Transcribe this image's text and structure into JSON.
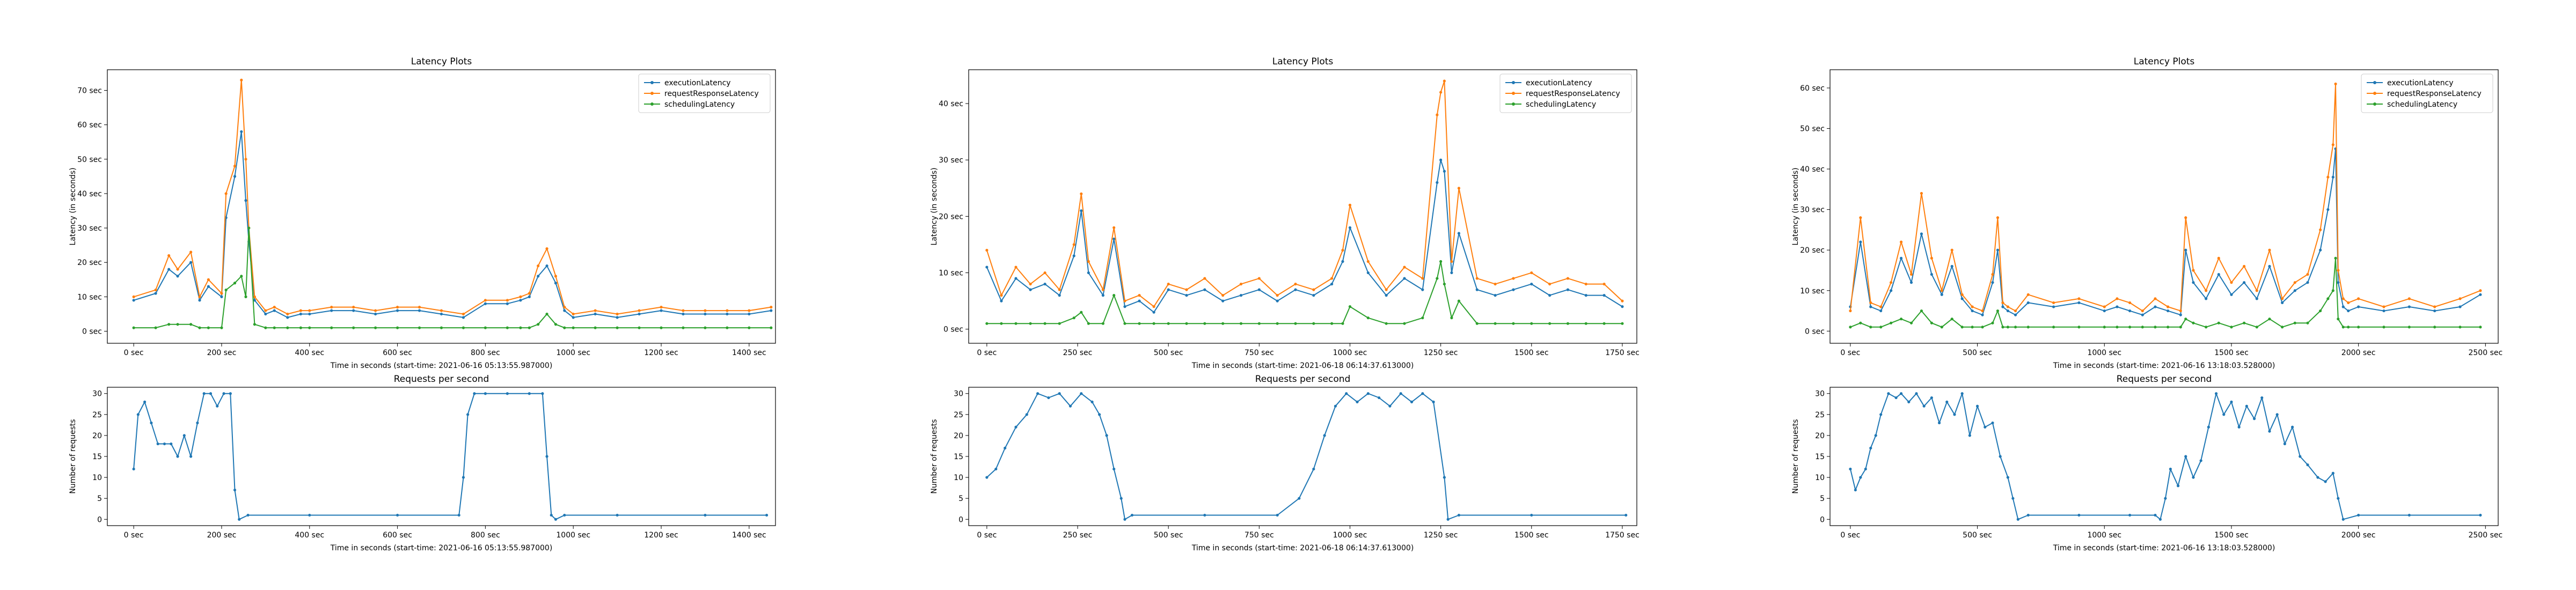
{
  "colors": {
    "execution": "#1f77b4",
    "request": "#ff7f0e",
    "scheduling": "#2ca02c",
    "rps": "#1f77b4"
  },
  "chart_data": [
    {
      "type": "line",
      "title": "Latency Plots",
      "xlabel": "Time in seconds (start-time: 2021-06-16 05:13:55.987000)",
      "ylabel": "Latency (in seconds)",
      "xlim": [
        -60,
        1460
      ],
      "ylim": [
        -3.5,
        76
      ],
      "xticks": [
        0,
        200,
        400,
        600,
        800,
        1000,
        1200,
        1400
      ],
      "xticklabels": [
        "0 sec",
        "200 sec",
        "400 sec",
        "600 sec",
        "800 sec",
        "1000 sec",
        "1200 sec",
        "1400 sec"
      ],
      "yticks": [
        0,
        10,
        20,
        30,
        40,
        50,
        60,
        70
      ],
      "yticklabels": [
        "0 sec",
        "10 sec",
        "20 sec",
        "30 sec",
        "40 sec",
        "50 sec",
        "60 sec",
        "70 sec"
      ],
      "legend_position": "top-right",
      "x": [
        0,
        50,
        80,
        100,
        130,
        150,
        170,
        200,
        210,
        230,
        245,
        255,
        262,
        275,
        300,
        320,
        350,
        380,
        400,
        450,
        500,
        550,
        600,
        650,
        700,
        750,
        800,
        850,
        880,
        900,
        920,
        940,
        960,
        980,
        1000,
        1050,
        1100,
        1150,
        1200,
        1250,
        1300,
        1350,
        1400,
        1450
      ],
      "series": [
        {
          "name": "executionLatency",
          "values": [
            9,
            11,
            18,
            16,
            20,
            9,
            13,
            10,
            33,
            45,
            58,
            38,
            26,
            9,
            5,
            6,
            4,
            5,
            5,
            6,
            6,
            5,
            6,
            6,
            5,
            4,
            8,
            8,
            9,
            10,
            16,
            19,
            14,
            6,
            4,
            5,
            4,
            5,
            6,
            5,
            5,
            5,
            5,
            6
          ]
        },
        {
          "name": "requestResponseLatency",
          "values": [
            10,
            12,
            22,
            18,
            23,
            10,
            15,
            11,
            40,
            48,
            73,
            50,
            30,
            10,
            6,
            7,
            5,
            6,
            6,
            7,
            7,
            6,
            7,
            7,
            6,
            5,
            9,
            9,
            10,
            11,
            19,
            24,
            16,
            7,
            5,
            6,
            5,
            6,
            7,
            6,
            6,
            6,
            6,
            7
          ]
        },
        {
          "name": "schedulingLatency",
          "values": [
            1,
            1,
            2,
            2,
            2,
            1,
            1,
            1,
            12,
            14,
            16,
            10,
            30,
            2,
            1,
            1,
            1,
            1,
            1,
            1,
            1,
            1,
            1,
            1,
            1,
            1,
            1,
            1,
            1,
            1,
            2,
            5,
            2,
            1,
            1,
            1,
            1,
            1,
            1,
            1,
            1,
            1,
            1,
            1
          ]
        }
      ]
    },
    {
      "type": "line",
      "title": "Requests per second",
      "xlabel": "Time in seconds (start-time: 2021-06-16 05:13:55.987000)",
      "ylabel": "Number of requests",
      "xlim": [
        -60,
        1460
      ],
      "ylim": [
        -1.5,
        31.5
      ],
      "xticks": [
        0,
        200,
        400,
        600,
        800,
        1000,
        1200,
        1400
      ],
      "xticklabels": [
        "0 sec",
        "200 sec",
        "400 sec",
        "600 sec",
        "800 sec",
        "1000 sec",
        "1200 sec",
        "1400 sec"
      ],
      "yticks": [
        0,
        5,
        10,
        15,
        20,
        25,
        30
      ],
      "yticklabels": [
        "0",
        "5",
        "10",
        "15",
        "20",
        "25",
        "30"
      ],
      "x": [
        0,
        10,
        25,
        40,
        55,
        70,
        85,
        100,
        115,
        130,
        145,
        160,
        175,
        190,
        205,
        220,
        230,
        240,
        260,
        400,
        600,
        740,
        750,
        760,
        775,
        800,
        850,
        900,
        930,
        940,
        950,
        960,
        980,
        1100,
        1300,
        1440
      ],
      "series": [
        {
          "name": "",
          "values": [
            12,
            25,
            28,
            23,
            18,
            18,
            18,
            15,
            20,
            15,
            23,
            30,
            30,
            27,
            30,
            30,
            7,
            0,
            1,
            1,
            1,
            1,
            10,
            25,
            30,
            30,
            30,
            30,
            30,
            15,
            1,
            0,
            1,
            1,
            1,
            1
          ]
        }
      ]
    },
    {
      "type": "line",
      "title": "Latency Plots",
      "xlabel": "Time in seconds (start-time: 2021-06-18 06:14:37.613000)",
      "ylabel": "Latency (in seconds)",
      "xlim": [
        -50,
        1790
      ],
      "ylim": [
        -2.5,
        46
      ],
      "xticks": [
        0,
        250,
        500,
        750,
        1000,
        1250,
        1500,
        1750
      ],
      "xticklabels": [
        "0 sec",
        "250 sec",
        "500 sec",
        "750 sec",
        "1000 sec",
        "1250 sec",
        "1500 sec",
        "1750 sec"
      ],
      "yticks": [
        0,
        10,
        20,
        30,
        40
      ],
      "yticklabels": [
        "0 sec",
        "10 sec",
        "20 sec",
        "30 sec",
        "40 sec"
      ],
      "legend_position": "top-right",
      "x": [
        0,
        40,
        80,
        120,
        160,
        200,
        240,
        260,
        280,
        320,
        350,
        380,
        420,
        460,
        500,
        550,
        600,
        650,
        700,
        750,
        800,
        850,
        900,
        950,
        980,
        1000,
        1050,
        1100,
        1150,
        1200,
        1240,
        1250,
        1260,
        1280,
        1300,
        1350,
        1400,
        1450,
        1500,
        1550,
        1600,
        1650,
        1700,
        1750
      ],
      "series": [
        {
          "name": "executionLatency",
          "values": [
            11,
            5,
            9,
            7,
            8,
            6,
            13,
            21,
            10,
            6,
            16,
            4,
            5,
            3,
            7,
            6,
            7,
            5,
            6,
            7,
            5,
            7,
            6,
            8,
            12,
            18,
            10,
            6,
            9,
            7,
            26,
            30,
            28,
            10,
            17,
            7,
            6,
            7,
            8,
            6,
            7,
            6,
            6,
            4
          ]
        },
        {
          "name": "requestResponseLatency",
          "values": [
            14,
            6,
            11,
            8,
            10,
            7,
            15,
            24,
            12,
            7,
            18,
            5,
            6,
            4,
            8,
            7,
            9,
            6,
            8,
            9,
            6,
            8,
            7,
            9,
            14,
            22,
            12,
            7,
            11,
            9,
            38,
            42,
            44,
            12,
            25,
            9,
            8,
            9,
            10,
            8,
            9,
            8,
            8,
            5
          ]
        },
        {
          "name": "schedulingLatency",
          "values": [
            1,
            1,
            1,
            1,
            1,
            1,
            2,
            3,
            1,
            1,
            6,
            1,
            1,
            1,
            1,
            1,
            1,
            1,
            1,
            1,
            1,
            1,
            1,
            1,
            1,
            4,
            2,
            1,
            1,
            2,
            9,
            12,
            8,
            2,
            5,
            1,
            1,
            1,
            1,
            1,
            1,
            1,
            1,
            1
          ]
        }
      ]
    },
    {
      "type": "line",
      "title": "Requests per second",
      "xlabel": "Time in seconds (start-time: 2021-06-18 06:14:37.613000)",
      "ylabel": "Number of requests",
      "xlim": [
        -50,
        1790
      ],
      "ylim": [
        -1.5,
        31.5
      ],
      "xticks": [
        0,
        250,
        500,
        750,
        1000,
        1250,
        1500,
        1750
      ],
      "xticklabels": [
        "0 sec",
        "250 sec",
        "500 sec",
        "750 sec",
        "1000 sec",
        "1250 sec",
        "1500 sec",
        "1750 sec"
      ],
      "yticks": [
        0,
        5,
        10,
        15,
        20,
        25,
        30
      ],
      "yticklabels": [
        "0",
        "5",
        "10",
        "15",
        "20",
        "25",
        "30"
      ],
      "x": [
        0,
        25,
        50,
        80,
        110,
        140,
        170,
        200,
        230,
        260,
        290,
        310,
        330,
        350,
        370,
        380,
        400,
        600,
        800,
        860,
        900,
        930,
        960,
        990,
        1020,
        1050,
        1080,
        1110,
        1140,
        1170,
        1200,
        1230,
        1260,
        1270,
        1300,
        1500,
        1760
      ],
      "series": [
        {
          "name": "",
          "values": [
            10,
            12,
            17,
            22,
            25,
            30,
            29,
            30,
            27,
            30,
            28,
            25,
            20,
            12,
            5,
            0,
            1,
            1,
            1,
            5,
            12,
            20,
            27,
            30,
            28,
            30,
            29,
            27,
            30,
            28,
            30,
            28,
            10,
            0,
            1,
            1,
            1
          ]
        }
      ]
    },
    {
      "type": "line",
      "title": "Latency Plots",
      "xlabel": "Time in seconds (start-time: 2021-06-16 13:18:03.528000)",
      "ylabel": "Latency (in seconds)",
      "xlim": [
        -80,
        2550
      ],
      "ylim": [
        -3,
        64.5
      ],
      "xticks": [
        0,
        500,
        1000,
        1500,
        2000,
        2500
      ],
      "xticklabels": [
        "0 sec",
        "500 sec",
        "1000 sec",
        "1500 sec",
        "2000 sec",
        "2500 sec"
      ],
      "yticks": [
        0,
        10,
        20,
        30,
        40,
        50,
        60
      ],
      "yticklabels": [
        "0 sec",
        "10 sec",
        "20 sec",
        "30 sec",
        "40 sec",
        "50 sec",
        "60 sec"
      ],
      "legend_position": "top-right",
      "x": [
        0,
        40,
        80,
        120,
        160,
        200,
        240,
        280,
        320,
        360,
        400,
        440,
        480,
        520,
        560,
        580,
        600,
        620,
        650,
        700,
        800,
        900,
        1000,
        1050,
        1100,
        1150,
        1200,
        1250,
        1300,
        1320,
        1350,
        1400,
        1450,
        1500,
        1550,
        1600,
        1650,
        1700,
        1750,
        1800,
        1850,
        1880,
        1900,
        1910,
        1920,
        1940,
        1960,
        2000,
        2100,
        2200,
        2300,
        2400,
        2480
      ],
      "series": [
        {
          "name": "executionLatency",
          "values": [
            6,
            22,
            6,
            5,
            10,
            18,
            12,
            24,
            14,
            9,
            16,
            8,
            5,
            4,
            12,
            20,
            6,
            5,
            4,
            7,
            6,
            7,
            5,
            6,
            5,
            4,
            6,
            5,
            4,
            20,
            12,
            8,
            14,
            9,
            12,
            8,
            16,
            7,
            10,
            12,
            20,
            30,
            38,
            45,
            12,
            6,
            5,
            6,
            5,
            6,
            5,
            6,
            9
          ]
        },
        {
          "name": "requestResponseLatency",
          "values": [
            5,
            28,
            7,
            6,
            12,
            22,
            14,
            34,
            18,
            10,
            20,
            9,
            6,
            5,
            14,
            28,
            7,
            6,
            5,
            9,
            7,
            8,
            6,
            8,
            7,
            5,
            8,
            6,
            5,
            28,
            15,
            10,
            18,
            12,
            16,
            10,
            20,
            8,
            12,
            14,
            25,
            38,
            46,
            61,
            15,
            8,
            7,
            8,
            6,
            8,
            6,
            8,
            10
          ]
        },
        {
          "name": "schedulingLatency",
          "values": [
            1,
            2,
            1,
            1,
            2,
            3,
            2,
            5,
            2,
            1,
            3,
            1,
            1,
            1,
            2,
            5,
            1,
            1,
            1,
            1,
            1,
            1,
            1,
            1,
            1,
            1,
            1,
            1,
            1,
            3,
            2,
            1,
            2,
            1,
            2,
            1,
            3,
            1,
            2,
            2,
            5,
            8,
            10,
            18,
            3,
            1,
            1,
            1,
            1,
            1,
            1,
            1,
            1
          ]
        }
      ]
    },
    {
      "type": "line",
      "title": "Requests per second",
      "xlabel": "Time in seconds (start-time: 2021-06-16 13:18:03.528000)",
      "ylabel": "Number of requests",
      "xlim": [
        -80,
        2550
      ],
      "ylim": [
        -1.5,
        31.5
      ],
      "xticks": [
        0,
        500,
        1000,
        1500,
        2000,
        2500
      ],
      "xticklabels": [
        "0 sec",
        "500 sec",
        "1000 sec",
        "1500 sec",
        "2000 sec",
        "2500 sec"
      ],
      "yticks": [
        0,
        5,
        10,
        15,
        20,
        25,
        30
      ],
      "yticklabels": [
        "0",
        "5",
        "10",
        "15",
        "20",
        "25",
        "30"
      ],
      "x": [
        0,
        20,
        40,
        60,
        80,
        100,
        120,
        150,
        180,
        200,
        230,
        260,
        290,
        320,
        350,
        380,
        410,
        440,
        470,
        500,
        530,
        560,
        590,
        620,
        640,
        660,
        700,
        900,
        1100,
        1200,
        1220,
        1240,
        1260,
        1290,
        1320,
        1350,
        1380,
        1410,
        1440,
        1470,
        1500,
        1530,
        1560,
        1590,
        1620,
        1650,
        1680,
        1710,
        1740,
        1770,
        1800,
        1840,
        1870,
        1900,
        1920,
        1940,
        2000,
        2200,
        2480
      ],
      "series": [
        {
          "name": "",
          "values": [
            12,
            7,
            10,
            12,
            17,
            20,
            25,
            30,
            29,
            30,
            28,
            30,
            27,
            29,
            23,
            28,
            25,
            30,
            20,
            27,
            22,
            23,
            15,
            10,
            5,
            0,
            1,
            1,
            1,
            1,
            0,
            5,
            12,
            8,
            15,
            10,
            14,
            22,
            30,
            25,
            28,
            22,
            27,
            24,
            29,
            21,
            25,
            18,
            22,
            15,
            13,
            10,
            9,
            11,
            5,
            0,
            1,
            1,
            1
          ]
        }
      ]
    }
  ]
}
